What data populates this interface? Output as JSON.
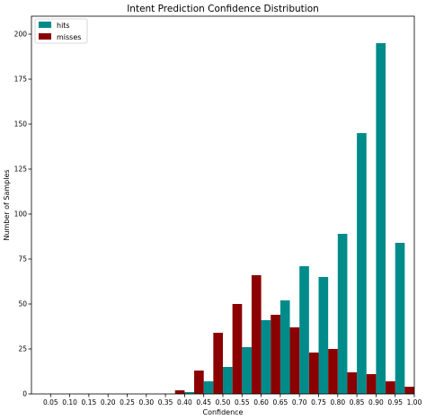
{
  "chart_data": {
    "type": "bar",
    "title": "Intent Prediction Confidence Distribution",
    "xlabel": "Confidence",
    "ylabel": "Number of Samples",
    "xlim": [
      0.0,
      1.0
    ],
    "ylim": [
      0,
      210
    ],
    "x_ticks": [
      "0.05",
      "0.10",
      "0.15",
      "0.20",
      "0.25",
      "0.30",
      "0.35",
      "0.40",
      "0.45",
      "0.50",
      "0.55",
      "0.60",
      "0.65",
      "0.70",
      "0.75",
      "0.80",
      "0.85",
      "0.90",
      "0.95",
      "1.00"
    ],
    "y_ticks": [
      "0",
      "25",
      "50",
      "75",
      "100",
      "125",
      "150",
      "175",
      "200"
    ],
    "legend_position": "top-left",
    "grid": false,
    "bin_width": 0.05,
    "bin_starts": [
      0.0,
      0.05,
      0.1,
      0.15,
      0.2,
      0.25,
      0.3,
      0.35,
      0.4,
      0.45,
      0.5,
      0.55,
      0.6,
      0.65,
      0.7,
      0.75,
      0.8,
      0.85,
      0.9,
      0.95
    ],
    "series": [
      {
        "name": "hits",
        "color": "#008b8b",
        "values": [
          0,
          0,
          0,
          0,
          0,
          0,
          0,
          0,
          1,
          7,
          15,
          26,
          41,
          52,
          71,
          65,
          89,
          145,
          195,
          84
        ]
      },
      {
        "name": "misses",
        "color": "#8b0000",
        "values": [
          0,
          0,
          0,
          0,
          0,
          0,
          0,
          2,
          13,
          34,
          50,
          66,
          44,
          37,
          23,
          25,
          12,
          11,
          7,
          4
        ]
      }
    ]
  }
}
